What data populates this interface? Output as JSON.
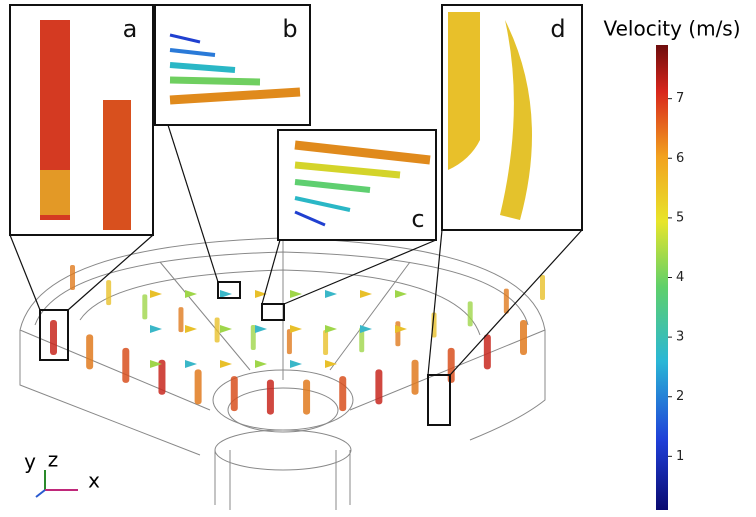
{
  "panels": [
    {
      "label": "a"
    },
    {
      "label": "b"
    },
    {
      "label": "c"
    },
    {
      "label": "d"
    }
  ],
  "colorbar": {
    "title": "Velocity (m/s)",
    "range": [
      0.1,
      7.9
    ],
    "ticks": [
      1,
      2,
      3,
      4,
      5,
      6,
      7
    ]
  },
  "axes_triad": {
    "labels": [
      "y",
      "z",
      "x"
    ]
  }
}
